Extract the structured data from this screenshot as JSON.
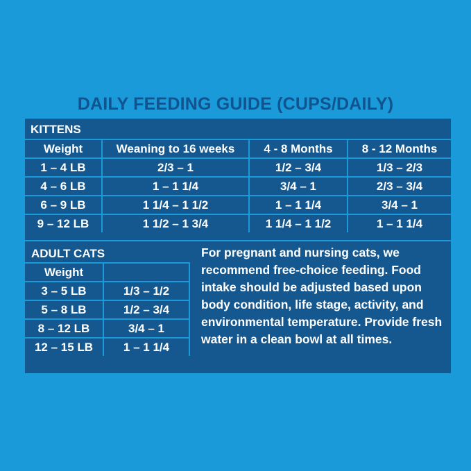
{
  "title": "DAILY FEEDING GUIDE (CUPS/DAILY)",
  "kittens": {
    "label": "KITTENS",
    "headers": [
      "Weight",
      "Weaning to 16 weeks",
      "4 - 8 Months",
      "8 - 12 Months"
    ],
    "rows": [
      [
        "1 – 4 LB",
        "2/3 – 1",
        "1/2 – 3/4",
        "1/3 – 2/3"
      ],
      [
        "4 – 6 LB",
        "1  – 1 1/4",
        "3/4 – 1",
        "2/3 – 3/4"
      ],
      [
        "6 – 9 LB",
        "1 1/4 – 1 1/2",
        "1 – 1 1/4",
        "3/4 – 1"
      ],
      [
        "9 – 12 LB",
        "1 1/2 – 1 3/4",
        "1 1/4 – 1 1/2",
        "1 – 1 1/4"
      ]
    ]
  },
  "adult": {
    "label": "ADULT CATS",
    "headers": [
      "Weight",
      ""
    ],
    "rows": [
      [
        "3 – 5 LB",
        "1/3 – 1/2"
      ],
      [
        "5 – 8 LB",
        "1/2  – 3/4"
      ],
      [
        "8 – 12 LB",
        "3/4 – 1"
      ],
      [
        "12 – 15 LB",
        "1 – 1 1/4"
      ]
    ]
  },
  "note": "For pregnant and nursing cats, we recommend free-choice feeding. Food intake should be adjusted based upon body condition, life stage, activity, and environmental temperature. Provide fresh water in a clean bowl at all times."
}
